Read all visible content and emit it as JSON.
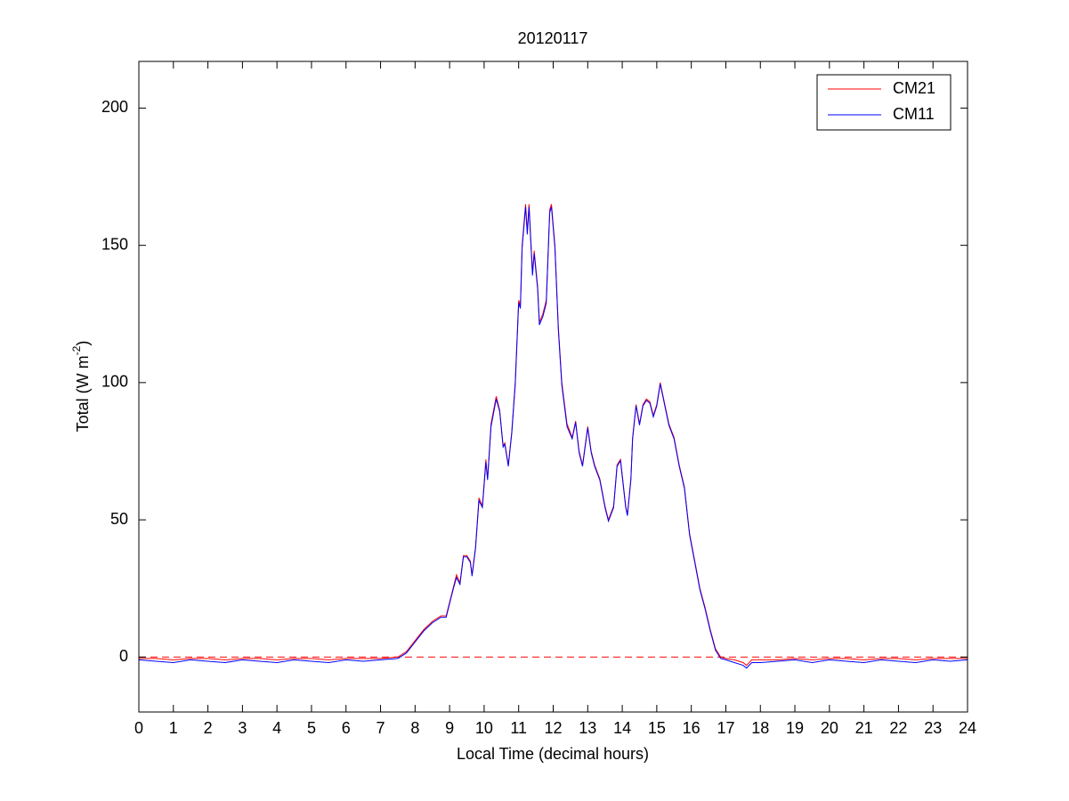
{
  "chart_data": {
    "type": "line",
    "title": "20120117",
    "xlabel": "Local Time (decimal hours)",
    "ylabel": {
      "text": "Total (W m",
      "superscript": "-2",
      "suffix": ")"
    },
    "xlim": [
      0,
      24
    ],
    "xticks": [
      0,
      1,
      2,
      3,
      4,
      5,
      6,
      7,
      8,
      9,
      10,
      11,
      12,
      13,
      14,
      15,
      16,
      17,
      18,
      19,
      20,
      21,
      22,
      23,
      24
    ],
    "ylim": [
      -20,
      217
    ],
    "yticks": [
      0,
      50,
      100,
      150,
      200
    ],
    "legend": "upper right",
    "reference_line": {
      "value": 0,
      "color": "#ff0000",
      "dashed": true
    },
    "x": [
      0,
      0.5,
      1,
      1.5,
      2,
      2.5,
      3,
      3.5,
      4,
      4.5,
      5,
      5.5,
      6,
      6.5,
      7,
      7.5,
      7.75,
      8,
      8.25,
      8.5,
      8.75,
      8.9,
      9,
      9.1,
      9.2,
      9.3,
      9.4,
      9.5,
      9.6,
      9.65,
      9.75,
      9.85,
      9.95,
      10.05,
      10.1,
      10.2,
      10.35,
      10.45,
      10.55,
      10.6,
      10.7,
      10.8,
      10.9,
      11,
      11.05,
      11.1,
      11.2,
      11.25,
      11.3,
      11.4,
      11.45,
      11.55,
      11.6,
      11.7,
      11.8,
      11.9,
      11.95,
      12.05,
      12.15,
      12.25,
      12.4,
      12.55,
      12.65,
      12.75,
      12.85,
      13,
      13.1,
      13.2,
      13.35,
      13.5,
      13.6,
      13.75,
      13.85,
      13.95,
      14.1,
      14.15,
      14.25,
      14.3,
      14.4,
      14.5,
      14.6,
      14.7,
      14.8,
      14.9,
      15,
      15.1,
      15.2,
      15.35,
      15.5,
      15.65,
      15.8,
      15.95,
      16.1,
      16.25,
      16.4,
      16.55,
      16.7,
      16.85,
      17,
      17.25,
      17.5,
      17.6,
      17.75,
      18,
      18.5,
      19,
      19.5,
      20,
      20.5,
      21,
      21.5,
      22,
      22.5,
      23,
      23.5,
      24
    ],
    "series": [
      {
        "name": "CM21",
        "color": "#ff0000",
        "values": [
          -0.5,
          -0.5,
          -1,
          -0.5,
          -0.5,
          -1,
          -0.5,
          -0.5,
          -1,
          -0.5,
          -0.5,
          -1,
          -0.5,
          -0.5,
          -0.5,
          0,
          2,
          6,
          10,
          13,
          15,
          15,
          20,
          25,
          30,
          27,
          37,
          37,
          35,
          30,
          40,
          58,
          55,
          72,
          65,
          85,
          95,
          90,
          77,
          78,
          70,
          82,
          100,
          130,
          128,
          150,
          165,
          155,
          165,
          140,
          148,
          135,
          122,
          125,
          130,
          163,
          165,
          150,
          120,
          100,
          85,
          80,
          86,
          75,
          70,
          84,
          75,
          70,
          65,
          55,
          50,
          55,
          70,
          72,
          55,
          52,
          65,
          80,
          92,
          85,
          92,
          94,
          93,
          88,
          92,
          100,
          94,
          85,
          80,
          70,
          62,
          45,
          35,
          25,
          18,
          10,
          3,
          0,
          -0.5,
          -1,
          -2,
          -3,
          -1,
          -1,
          -1,
          -0.5,
          -1,
          -0.5,
          -0.5,
          -1,
          -0.5,
          -0.5,
          -1,
          -0.5,
          -0.5,
          -0.5
        ]
      },
      {
        "name": "CM11",
        "color": "#0000ff",
        "values": [
          -1,
          -1.5,
          -2,
          -1,
          -1.5,
          -2,
          -1,
          -1.5,
          -2,
          -1,
          -1.5,
          -2,
          -1,
          -1.5,
          -1,
          -0.5,
          1.5,
          5.5,
          9.5,
          12.5,
          14.5,
          14.5,
          19.5,
          24.5,
          29,
          26.5,
          36.5,
          36.5,
          34.5,
          29.5,
          39.5,
          57,
          54.5,
          71,
          64.5,
          84,
          94,
          89.5,
          76.5,
          77.5,
          69.5,
          81.5,
          99,
          129,
          127,
          149,
          164,
          154,
          164,
          139,
          147,
          134,
          121,
          124,
          129,
          162,
          164,
          149,
          119,
          99,
          84,
          79.5,
          85.5,
          74.5,
          69.5,
          83.5,
          74.5,
          69.5,
          64.5,
          54.5,
          49.5,
          54.5,
          69.5,
          71.5,
          54.5,
          51.5,
          64.5,
          79.5,
          91.5,
          84.5,
          91.5,
          93.5,
          92.5,
          87.5,
          91.5,
          99.5,
          93.5,
          84.5,
          79.5,
          69.5,
          61.5,
          44.5,
          34.5,
          24.5,
          17.5,
          9.5,
          2.5,
          -0.5,
          -1,
          -2,
          -3,
          -4,
          -2,
          -2,
          -1.5,
          -1,
          -2,
          -1,
          -1.5,
          -2,
          -1,
          -1.5,
          -2,
          -1,
          -1.5,
          -1
        ]
      }
    ]
  }
}
